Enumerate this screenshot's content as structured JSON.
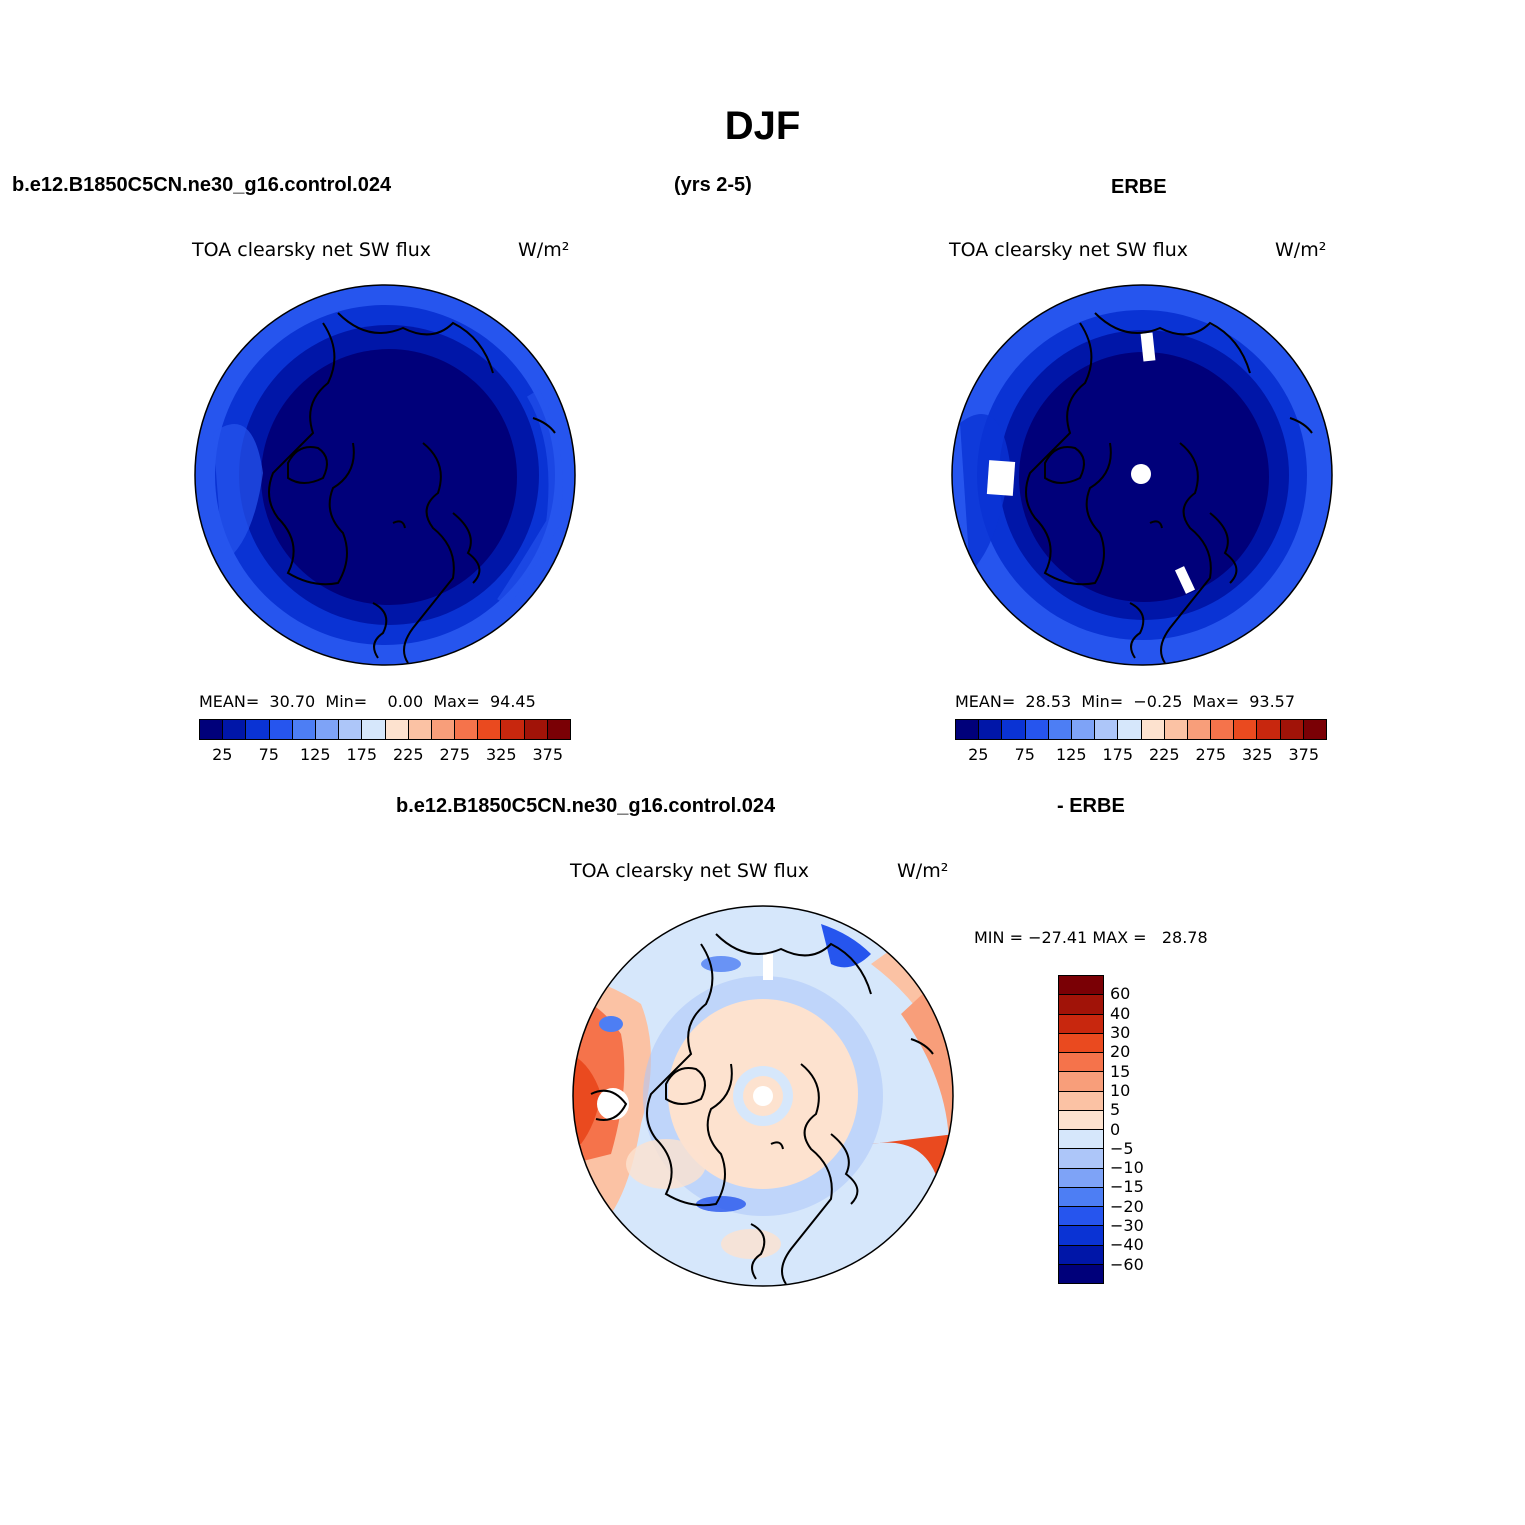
{
  "title": "DJF",
  "case_name": "b.e12.B1850C5CN.ne30_g16.control.024",
  "years": "(yrs 2-5)",
  "obs_name": "ERBE",
  "diff_case_name": "b.e12.B1850C5CN.ne30_g16.control.024",
  "diff_obs_name": "- ERBE",
  "panels": {
    "model": {
      "variable": "TOA clearsky net SW flux",
      "units": "W/m²",
      "stats": "MEAN=  30.70  Min=    0.00  Max=  94.45"
    },
    "obs": {
      "variable": "TOA clearsky net SW flux",
      "units": "W/m²",
      "stats": "MEAN=  28.53  Min=  −0.25  Max=  93.57"
    },
    "diff": {
      "variable": "TOA clearsky net SW flux",
      "units": "W/m²",
      "stats": "MIN = −27.41 MAX =   28.78"
    }
  },
  "colorbar_abs": {
    "colors": [
      "#00007a",
      "#0016a8",
      "#0a33d4",
      "#2655ee",
      "#4d7ef4",
      "#7ea3f7",
      "#adc6f9",
      "#d6e7fb",
      "#fde2cf",
      "#fbc2a4",
      "#f89e7a",
      "#f5734b",
      "#ea4a1f",
      "#c8270e",
      "#a11308",
      "#7a0005"
    ],
    "labels": [
      "25",
      "75",
      "125",
      "175",
      "225",
      "275",
      "325",
      "375"
    ]
  },
  "colorbar_diff": {
    "colors": [
      "#7a0005",
      "#a11308",
      "#c8270e",
      "#ea4a1f",
      "#f5734b",
      "#f89e7a",
      "#fbc2a4",
      "#fde2cf",
      "#d6e7fb",
      "#adc6f9",
      "#7ea3f7",
      "#4d7ef4",
      "#2655ee",
      "#0a33d4",
      "#0016a8",
      "#00007a"
    ],
    "labels": [
      "60",
      "40",
      "30",
      "20",
      "15",
      "10",
      "5",
      "0",
      "−5",
      "−10",
      "−15",
      "−20",
      "−30",
      "−40",
      "−60"
    ]
  }
}
